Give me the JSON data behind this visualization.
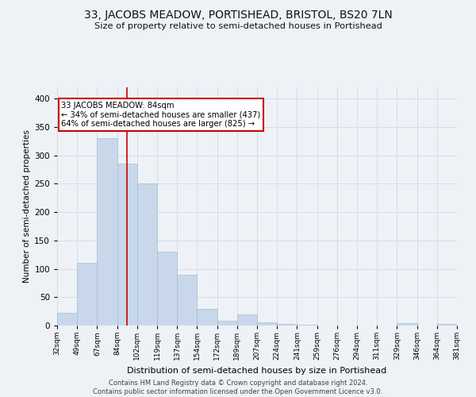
{
  "title_line1": "33, JACOBS MEADOW, PORTISHEAD, BRISTOL, BS20 7LN",
  "title_line2": "Size of property relative to semi-detached houses in Portishead",
  "bar_values": [
    22,
    110,
    330,
    285,
    250,
    130,
    90,
    30,
    8,
    20,
    5,
    3,
    1,
    0,
    0,
    0,
    0,
    4,
    0,
    3
  ],
  "bin_labels": [
    "32sqm",
    "49sqm",
    "67sqm",
    "84sqm",
    "102sqm",
    "119sqm",
    "137sqm",
    "154sqm",
    "172sqm",
    "189sqm",
    "207sqm",
    "224sqm",
    "241sqm",
    "259sqm",
    "276sqm",
    "294sqm",
    "311sqm",
    "329sqm",
    "346sqm",
    "364sqm",
    "381sqm"
  ],
  "bar_color": "#c8d8ea",
  "bar_edge_color": "#a8bece",
  "grid_color": "#d4dde8",
  "property_bin_index": 3,
  "vline_color": "#cc0000",
  "annotation_text_line1": "33 JACOBS MEADOW: 84sqm",
  "annotation_text_line2": "← 34% of semi-detached houses are smaller (437)",
  "annotation_text_line3": "64% of semi-detached houses are larger (825) →",
  "annotation_box_edge_color": "#cc0000",
  "xlabel": "Distribution of semi-detached houses by size in Portishead",
  "ylabel": "Number of semi-detached properties",
  "ylim": [
    0,
    420
  ],
  "yticks": [
    0,
    50,
    100,
    150,
    200,
    250,
    300,
    350,
    400
  ],
  "footer_line1": "Contains HM Land Registry data © Crown copyright and database right 2024.",
  "footer_line2": "Contains public sector information licensed under the Open Government Licence v3.0.",
  "background_color": "#eef2f7",
  "plot_bg_color": "#eef2f7"
}
